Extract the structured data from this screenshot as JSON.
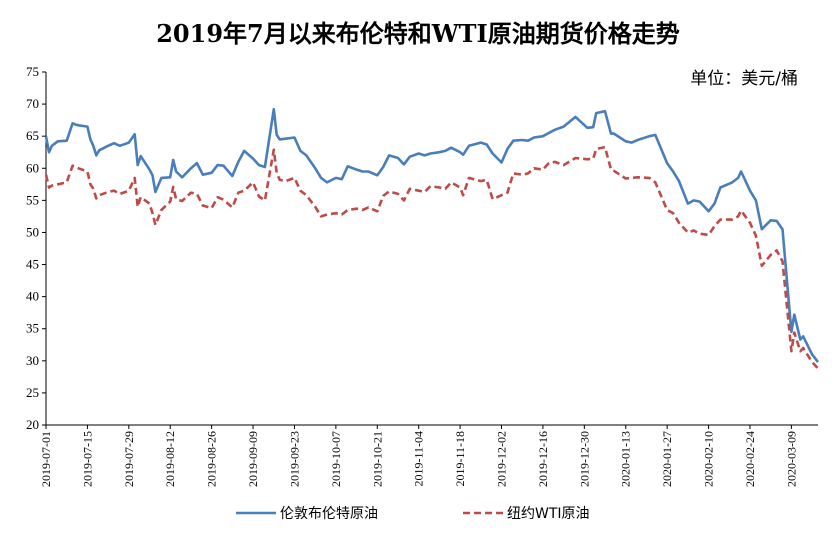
{
  "chart_data": {
    "type": "line",
    "title": "2019年7月以来布伦特和WTI原油期货价格走势",
    "unit_label": "单位：美元/桶",
    "xlabel": "",
    "ylabel": "",
    "ylim": [
      20,
      75
    ],
    "y_ticks": [
      "20",
      "25",
      "30",
      "35",
      "40",
      "45",
      "50",
      "55",
      "60",
      "65",
      "70",
      "75"
    ],
    "x_ticks": [
      "2019-07-01",
      "2019-07-15",
      "2019-07-29",
      "2019-08-12",
      "2019-08-26",
      "2019-09-09",
      "2019-09-23",
      "2019-10-07",
      "2019-10-21",
      "2019-11-04",
      "2019-11-18",
      "2019-12-02",
      "2019-12-16",
      "2019-12-30",
      "2020-01-13",
      "2020-01-27",
      "2020-02-10",
      "2020-02-24",
      "2020-03-09"
    ],
    "legend_position": "bottom",
    "colors": {
      "brent": "#4a7ebb",
      "wti": "#be4b48"
    },
    "series": [
      {
        "name": "伦敦布伦特原油",
        "style": "solid",
        "x": [
          "2019-07-01",
          "2019-07-02",
          "2019-07-03",
          "2019-07-05",
          "2019-07-08",
          "2019-07-10",
          "2019-07-11",
          "2019-07-12",
          "2019-07-15",
          "2019-07-16",
          "2019-07-17",
          "2019-07-18",
          "2019-07-19",
          "2019-07-22",
          "2019-07-24",
          "2019-07-26",
          "2019-07-29",
          "2019-07-31",
          "2019-08-01",
          "2019-08-02",
          "2019-08-05",
          "2019-08-06",
          "2019-08-07",
          "2019-08-09",
          "2019-08-12",
          "2019-08-13",
          "2019-08-14",
          "2019-08-16",
          "2019-08-19",
          "2019-08-21",
          "2019-08-23",
          "2019-08-26",
          "2019-08-28",
          "2019-08-30",
          "2019-09-02",
          "2019-09-04",
          "2019-09-06",
          "2019-09-09",
          "2019-09-11",
          "2019-09-13",
          "2019-09-16",
          "2019-09-17",
          "2019-09-18",
          "2019-09-20",
          "2019-09-23",
          "2019-09-25",
          "2019-09-27",
          "2019-09-30",
          "2019-10-02",
          "2019-10-04",
          "2019-10-07",
          "2019-10-09",
          "2019-10-11",
          "2019-10-14",
          "2019-10-16",
          "2019-10-18",
          "2019-10-21",
          "2019-10-23",
          "2019-10-25",
          "2019-10-28",
          "2019-10-30",
          "2019-11-01",
          "2019-11-04",
          "2019-11-06",
          "2019-11-08",
          "2019-11-11",
          "2019-11-13",
          "2019-11-15",
          "2019-11-18",
          "2019-11-19",
          "2019-11-21",
          "2019-11-25",
          "2019-11-27",
          "2019-11-29",
          "2019-12-02",
          "2019-12-04",
          "2019-12-06",
          "2019-12-09",
          "2019-12-11",
          "2019-12-13",
          "2019-12-16",
          "2019-12-18",
          "2019-12-20",
          "2019-12-23",
          "2019-12-27",
          "2019-12-31",
          "2020-01-02",
          "2020-01-03",
          "2020-01-06",
          "2020-01-08",
          "2020-01-09",
          "2020-01-13",
          "2020-01-15",
          "2020-01-17",
          "2020-01-21",
          "2020-01-23",
          "2020-01-27",
          "2020-01-29",
          "2020-01-31",
          "2020-02-03",
          "2020-02-05",
          "2020-02-07",
          "2020-02-10",
          "2020-02-12",
          "2020-02-14",
          "2020-02-18",
          "2020-02-20",
          "2020-02-21",
          "2020-02-24",
          "2020-02-26",
          "2020-02-28",
          "2020-03-02",
          "2020-03-04",
          "2020-03-06",
          "2020-03-09",
          "2020-03-10",
          "2020-03-12",
          "2020-03-13",
          "2020-03-16",
          "2020-03-18"
        ],
        "values": [
          65,
          62.5,
          63.5,
          64.2,
          64.3,
          67,
          66.8,
          66.7,
          66.5,
          64.5,
          63.5,
          62,
          62.8,
          63.5,
          63.9,
          63.5,
          64,
          65.3,
          60.5,
          61.9,
          59.8,
          58.9,
          56.3,
          58.5,
          58.6,
          61.3,
          59.5,
          58.6,
          60,
          60.8,
          59,
          59.3,
          60.5,
          60.4,
          58.8,
          61,
          62.7,
          61.5,
          60.5,
          60.2,
          69.2,
          65.2,
          64.5,
          64.6,
          64.8,
          62.7,
          62,
          60,
          58.5,
          57.8,
          58.5,
          58.3,
          60.3,
          59.8,
          59.5,
          59.5,
          58.9,
          60.2,
          62,
          61.6,
          60.6,
          61.8,
          62.3,
          62,
          62.3,
          62.5,
          62.7,
          63.2,
          62.5,
          62.1,
          63.5,
          64,
          63.7,
          62.3,
          60.9,
          63,
          64.3,
          64.4,
          64.3,
          64.8,
          65,
          65.5,
          66,
          66.5,
          68,
          66.3,
          66.4,
          68.6,
          68.9,
          65.4,
          65.4,
          64.2,
          64,
          64.4,
          65,
          65.2,
          60.8,
          59.5,
          58,
          54.5,
          55,
          54.8,
          53.3,
          54.5,
          57,
          57.8,
          58.5,
          59.5,
          56.5,
          55,
          50.5,
          51.9,
          51.8,
          50.5,
          34.5,
          37.2,
          33.3,
          33.8,
          31,
          29.8
        ]
      },
      {
        "name": "纽约WTI原油",
        "style": "dashed",
        "x": [
          "2019-07-01",
          "2019-07-02",
          "2019-07-03",
          "2019-07-05",
          "2019-07-08",
          "2019-07-10",
          "2019-07-11",
          "2019-07-12",
          "2019-07-15",
          "2019-07-16",
          "2019-07-17",
          "2019-07-18",
          "2019-07-19",
          "2019-07-22",
          "2019-07-24",
          "2019-07-26",
          "2019-07-29",
          "2019-07-31",
          "2019-08-01",
          "2019-08-02",
          "2019-08-05",
          "2019-08-06",
          "2019-08-07",
          "2019-08-09",
          "2019-08-12",
          "2019-08-13",
          "2019-08-14",
          "2019-08-16",
          "2019-08-19",
          "2019-08-21",
          "2019-08-23",
          "2019-08-26",
          "2019-08-28",
          "2019-08-30",
          "2019-09-02",
          "2019-09-04",
          "2019-09-06",
          "2019-09-09",
          "2019-09-11",
          "2019-09-13",
          "2019-09-16",
          "2019-09-17",
          "2019-09-18",
          "2019-09-20",
          "2019-09-23",
          "2019-09-25",
          "2019-09-27",
          "2019-09-30",
          "2019-10-02",
          "2019-10-04",
          "2019-10-07",
          "2019-10-09",
          "2019-10-11",
          "2019-10-14",
          "2019-10-16",
          "2019-10-18",
          "2019-10-21",
          "2019-10-23",
          "2019-10-25",
          "2019-10-28",
          "2019-10-30",
          "2019-11-01",
          "2019-11-04",
          "2019-11-06",
          "2019-11-08",
          "2019-11-11",
          "2019-11-13",
          "2019-11-15",
          "2019-11-18",
          "2019-11-19",
          "2019-11-21",
          "2019-11-25",
          "2019-11-27",
          "2019-11-29",
          "2019-12-02",
          "2019-12-04",
          "2019-12-06",
          "2019-12-09",
          "2019-12-11",
          "2019-12-13",
          "2019-12-16",
          "2019-12-18",
          "2019-12-20",
          "2019-12-23",
          "2019-12-27",
          "2019-12-31",
          "2020-01-02",
          "2020-01-03",
          "2020-01-06",
          "2020-01-08",
          "2020-01-09",
          "2020-01-13",
          "2020-01-15",
          "2020-01-17",
          "2020-01-21",
          "2020-01-23",
          "2020-01-27",
          "2020-01-29",
          "2020-01-31",
          "2020-02-03",
          "2020-02-05",
          "2020-02-07",
          "2020-02-10",
          "2020-02-12",
          "2020-02-14",
          "2020-02-18",
          "2020-02-20",
          "2020-02-21",
          "2020-02-24",
          "2020-02-26",
          "2020-02-28",
          "2020-03-02",
          "2020-03-04",
          "2020-03-06",
          "2020-03-09",
          "2020-03-10",
          "2020-03-12",
          "2020-03-13",
          "2020-03-16",
          "2020-03-18"
        ],
        "values": [
          59,
          57,
          57.3,
          57.5,
          57.8,
          60.4,
          60.2,
          60,
          59.5,
          57.5,
          56.8,
          55.3,
          55.8,
          56.3,
          56.5,
          56,
          56.5,
          58.5,
          54,
          55.5,
          54.5,
          53,
          51.2,
          53.5,
          54.8,
          57.1,
          55.2,
          54.9,
          56.2,
          56,
          54.2,
          53.8,
          55.5,
          55.1,
          53.9,
          56.2,
          56.5,
          57.8,
          55.6,
          55,
          62.9,
          59.3,
          58.2,
          58,
          58.5,
          56.5,
          55.8,
          54,
          52.5,
          52.8,
          53,
          52.8,
          53.5,
          53.7,
          53.5,
          53.9,
          53.3,
          55.7,
          56.4,
          56,
          55,
          56.8,
          56.5,
          56.3,
          57.2,
          57,
          56.8,
          57.8,
          57,
          55.8,
          58.5,
          58,
          58.2,
          55.2,
          55.8,
          56.2,
          59.2,
          59,
          59.2,
          60,
          59.8,
          60.8,
          61,
          60.5,
          61.6,
          61.4,
          61.5,
          63,
          63.3,
          59.8,
          59.6,
          58.4,
          58.5,
          58.6,
          58.5,
          57.8,
          53.5,
          53,
          51.5,
          50,
          50.3,
          49.8,
          49.6,
          51,
          52,
          52,
          52.5,
          53.4,
          51.5,
          49.5,
          44.8,
          46.5,
          47.2,
          45.5,
          31.5,
          34.4,
          31.5,
          32,
          29.8,
          28.8
        ]
      }
    ]
  }
}
